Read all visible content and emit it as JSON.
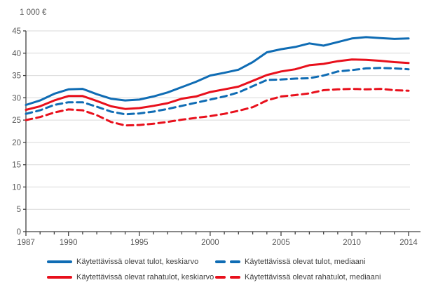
{
  "unit_label": "1 000 €",
  "chart_data": {
    "type": "line",
    "title": "",
    "xlabel": "",
    "ylabel": "1 000 €",
    "grid": true,
    "legend_position": "bottom",
    "ylim": [
      0,
      45
    ],
    "y_ticks": [
      0,
      5,
      10,
      15,
      20,
      25,
      30,
      35,
      40,
      45
    ],
    "x": [
      1987,
      1988,
      1989,
      1990,
      1991,
      1992,
      1993,
      1994,
      1995,
      1996,
      1997,
      1998,
      1999,
      2000,
      2001,
      2002,
      2003,
      2004,
      2005,
      2006,
      2007,
      2008,
      2009,
      2010,
      2011,
      2012,
      2013,
      2014
    ],
    "x_tick_labels": [
      1987,
      1990,
      1995,
      2000,
      2005,
      2010,
      2014
    ],
    "series": [
      {
        "name": "Käytettävissä olevat tulot, keskiarvo",
        "color": "#0f6cb4",
        "dash": "solid",
        "values": [
          28.4,
          29.4,
          30.9,
          31.9,
          32.0,
          30.8,
          29.8,
          29.4,
          29.6,
          30.3,
          31.2,
          32.4,
          33.6,
          35.0,
          35.6,
          36.3,
          38.0,
          40.2,
          40.9,
          41.4,
          42.2,
          41.7,
          42.5,
          43.3,
          43.6,
          43.4,
          43.2,
          43.3
        ]
      },
      {
        "name": "Käytettävissä olevat tulot, mediaani",
        "color": "#0f6cb4",
        "dash": "dashed",
        "values": [
          26.4,
          27.2,
          28.4,
          29.0,
          29.0,
          28.0,
          26.9,
          26.3,
          26.5,
          26.9,
          27.5,
          28.2,
          28.9,
          29.6,
          30.3,
          31.2,
          32.6,
          34.0,
          34.1,
          34.3,
          34.4,
          35.0,
          35.9,
          36.2,
          36.6,
          36.7,
          36.6,
          36.4
        ]
      },
      {
        "name": "Käytettävissä olevat rahatulot, keskiarvo",
        "color": "#e8101c",
        "dash": "solid",
        "values": [
          27.3,
          28.1,
          29.4,
          30.4,
          30.4,
          29.3,
          28.1,
          27.5,
          27.7,
          28.2,
          28.8,
          29.8,
          30.3,
          31.3,
          31.9,
          32.5,
          33.8,
          35.1,
          35.9,
          36.4,
          37.3,
          37.6,
          38.2,
          38.6,
          38.5,
          38.3,
          38.0,
          37.8
        ]
      },
      {
        "name": "Käytettävissä olevat rahatulot, mediaani",
        "color": "#e8101c",
        "dash": "dashed",
        "values": [
          25.0,
          25.7,
          26.7,
          27.4,
          27.2,
          26.1,
          24.6,
          23.8,
          23.9,
          24.2,
          24.6,
          25.1,
          25.5,
          25.9,
          26.4,
          27.1,
          27.9,
          29.4,
          30.3,
          30.6,
          31.0,
          31.7,
          31.9,
          32.0,
          31.9,
          32.0,
          31.7,
          31.6
        ]
      }
    ],
    "colors": {
      "blue": "#0f6cb4",
      "red": "#e8101c",
      "grid": "#d9d9d9",
      "axis": "#404040",
      "text": "#595959"
    }
  }
}
